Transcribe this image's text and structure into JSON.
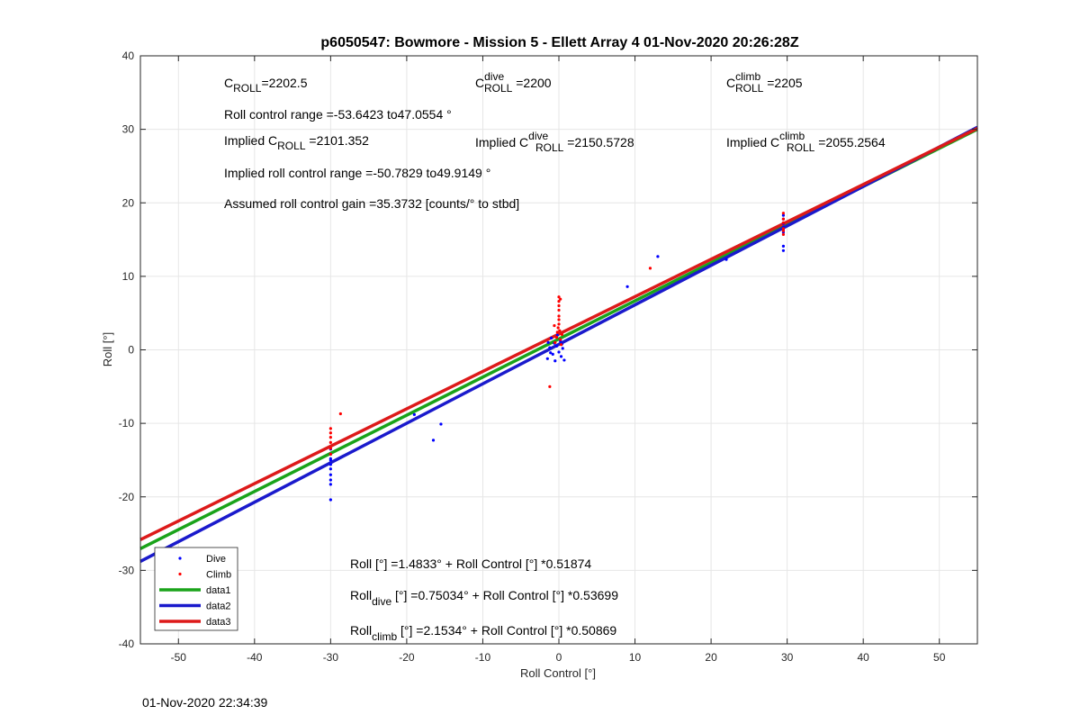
{
  "footer_timestamp": "01-Nov-2020 22:34:39",
  "colors": {
    "dive": "#0000ff",
    "climb": "#ff0000",
    "data1": "#1aa31a",
    "data2": "#1a1acc",
    "data3": "#dd1a1a",
    "grid": "#e6e6e6",
    "axis": "#262626"
  },
  "chart_data": {
    "type": "scatter",
    "title": "p6050547: Bowmore - Mission 5 - Ellett Array 4 01-Nov-2020 20:26:28Z",
    "xlabel": "Roll Control [°]",
    "ylabel": "Roll [°]",
    "xlim": [
      -55,
      55
    ],
    "ylim": [
      -40,
      40
    ],
    "xticks": [
      -50,
      -40,
      -30,
      -20,
      -10,
      0,
      10,
      20,
      30,
      40,
      50
    ],
    "yticks": [
      -40,
      -30,
      -20,
      -10,
      0,
      10,
      20,
      30,
      40
    ],
    "xticklabels": [
      "-50",
      "-40",
      "-30",
      "-20",
      "-10",
      "0",
      "10",
      "20",
      "30",
      "40",
      "50"
    ],
    "yticklabels": [
      "-40",
      "-30",
      "-20",
      "-10",
      "0",
      "10",
      "20",
      "30",
      "40"
    ],
    "grid": true,
    "legend_position": "bottom-left",
    "legend": [
      {
        "name": "Dive",
        "kind": "marker",
        "color": "#0000ff"
      },
      {
        "name": "Climb",
        "kind": "marker",
        "color": "#ff0000"
      },
      {
        "name": "data1",
        "kind": "line",
        "color": "#1aa31a"
      },
      {
        "name": "data2",
        "kind": "line",
        "color": "#1a1acc"
      },
      {
        "name": "data3",
        "kind": "line",
        "color": "#dd1a1a"
      }
    ],
    "series": [
      {
        "name": "Dive",
        "kind": "scatter",
        "color": "#0000ff",
        "points": [
          [
            -30,
            -13.5
          ],
          [
            -30,
            -14.2
          ],
          [
            -30,
            -15.0
          ],
          [
            -30,
            -15.6
          ],
          [
            -30,
            -16.2
          ],
          [
            -30,
            -17.0
          ],
          [
            -30,
            -17.7
          ],
          [
            -30,
            -18.3
          ],
          [
            -30,
            -20.4
          ],
          [
            -30,
            -14.8
          ],
          [
            -19,
            -8.8
          ],
          [
            -16.5,
            -12.3
          ],
          [
            -15.5,
            -10.1
          ],
          [
            -1.5,
            -1.2
          ],
          [
            -1.2,
            0.3
          ],
          [
            -1.0,
            1.6
          ],
          [
            -0.8,
            -0.6
          ],
          [
            -0.6,
            0.9
          ],
          [
            -0.5,
            -1.5
          ],
          [
            -0.3,
            0.5
          ],
          [
            0,
            -0.3
          ],
          [
            0.2,
            1.2
          ],
          [
            0.3,
            -0.9
          ],
          [
            0.5,
            0.2
          ],
          [
            0.7,
            -1.4
          ],
          [
            -1.4,
            1.0
          ],
          [
            -1.1,
            -0.4
          ],
          [
            0.4,
            0.8
          ],
          [
            -0.2,
            2.0
          ],
          [
            9,
            8.6
          ],
          [
            13,
            12.7
          ],
          [
            22,
            12.3
          ],
          [
            29.5,
            13.5
          ],
          [
            29.5,
            14.1
          ],
          [
            29.5,
            16.0
          ],
          [
            29.5,
            16.7
          ],
          [
            29.5,
            17.2
          ],
          [
            29.5,
            17.8
          ],
          [
            29.5,
            18.3
          ],
          [
            29.5,
            16.4
          ]
        ]
      },
      {
        "name": "Climb",
        "kind": "scatter",
        "color": "#ff0000",
        "points": [
          [
            -30,
            -10.7
          ],
          [
            -30,
            -11.3
          ],
          [
            -30,
            -11.9
          ],
          [
            -30,
            -12.6
          ],
          [
            -30,
            -13.4
          ],
          [
            -30,
            -14.2
          ],
          [
            -28.7,
            -8.7
          ],
          [
            -1.2,
            -5.0
          ],
          [
            -0.5,
            1.0
          ],
          [
            -0.3,
            1.7
          ],
          [
            -0.2,
            2.4
          ],
          [
            -0.1,
            3.0
          ],
          [
            0,
            3.5
          ],
          [
            0,
            4.1
          ],
          [
            0,
            4.6
          ],
          [
            0,
            5.4
          ],
          [
            0,
            6.0
          ],
          [
            0,
            6.6
          ],
          [
            0,
            7.2
          ],
          [
            0.1,
            2.6
          ],
          [
            0.2,
            1.4
          ],
          [
            0.3,
            0.7
          ],
          [
            -0.6,
            3.3
          ],
          [
            0.4,
            2.1
          ],
          [
            0.2,
            6.9
          ],
          [
            12,
            11.1
          ],
          [
            29.5,
            15.7
          ],
          [
            29.5,
            16.5
          ],
          [
            29.5,
            17.3
          ],
          [
            29.5,
            17.8
          ],
          [
            29.5,
            18.6
          ],
          [
            29.5,
            16.2
          ]
        ]
      },
      {
        "name": "data1",
        "kind": "line",
        "color": "#1aa31a",
        "intercept": 1.4833,
        "slope": 0.51874,
        "x": [
          -55,
          55
        ]
      },
      {
        "name": "data2",
        "kind": "line",
        "color": "#1a1acc",
        "intercept": 0.75034,
        "slope": 0.53699,
        "x": [
          -55,
          55
        ]
      },
      {
        "name": "data3",
        "kind": "line",
        "color": "#dd1a1a",
        "intercept": 2.1534,
        "slope": 0.50869,
        "x": [
          -55,
          55
        ]
      }
    ],
    "annotations": {
      "c_roll": {
        "base": "C",
        "sub": "ROLL",
        "value": "=2202.5"
      },
      "c_roll_dive": {
        "base": "C",
        "sup": "dive",
        "sub": "ROLL",
        "value": " =2200"
      },
      "c_roll_climb": {
        "base": "C",
        "sup": "climb",
        "sub": "ROLL",
        "value": " =2205"
      },
      "roll_control_range": "Roll control range =-53.6423 to47.0554 °",
      "implied_c_roll": {
        "prefix": "Implied C",
        "sub": "ROLL",
        "value": " =2101.352"
      },
      "implied_c_roll_dive": {
        "prefix": "Implied C",
        "sup": "dive",
        "sub": "ROLL",
        "value": " =2150.5728"
      },
      "implied_c_roll_climb": {
        "prefix": "Implied C",
        "sup": "climb",
        "sub": "ROLL",
        "value": " =2055.2564"
      },
      "implied_range": "Implied roll control range =-50.7829 to49.9149 °",
      "gain": "Assumed roll control gain =35.3732 [counts/° to stbd]",
      "fit_all": "Roll [°] =1.4833° + Roll Control [°] *0.51874",
      "fit_dive": {
        "base": "Roll",
        "sub": "dive",
        "rest": " [°] =0.75034° + Roll Control [°] *0.53699"
      },
      "fit_climb": {
        "base": "Roll",
        "sub": "climb",
        "rest": " [°] =2.1534° + Roll Control [°] *0.50869"
      }
    }
  }
}
